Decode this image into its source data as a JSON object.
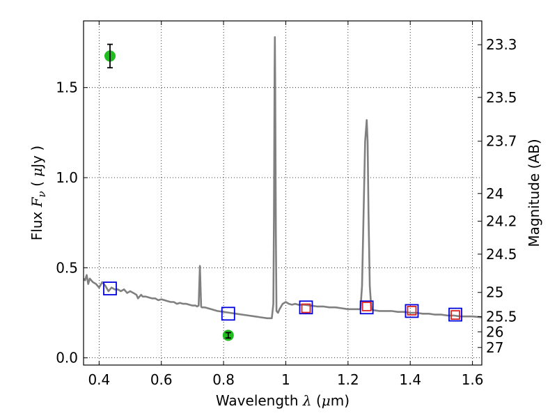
{
  "chart_data": {
    "type": "line",
    "xlabel": {
      "prefix": "Wavelength  ",
      "lambda": "λ",
      "unit_open": " (",
      "mu": "μ",
      "unit_close": "m)"
    },
    "ylabel": {
      "prefix": "Flux  ",
      "F": "F",
      "nu": "ν",
      "open": "  ( ",
      "mu": "μ",
      "close": "Jy )"
    },
    "y2label": "Magnitude (AB)",
    "xlim": [
      0.35,
      1.63
    ],
    "ylim": [
      -0.04,
      1.87
    ],
    "xticks": [
      0.4,
      0.6,
      0.8,
      1.0,
      1.2,
      1.4,
      1.6
    ],
    "xtick_labels": [
      "0.4",
      "0.6",
      "0.8",
      "1",
      "1.2",
      "1.4",
      "1.6"
    ],
    "yticks": [
      0.0,
      0.5,
      1.0,
      1.5
    ],
    "ytick_labels": [
      "0.0",
      "0.5",
      "1.0",
      "1.5"
    ],
    "y2ticks": [
      23.3,
      23.5,
      23.7,
      24,
      24.2,
      24.5,
      25,
      25.5,
      26,
      27
    ],
    "y2tick_labels": [
      "23.3",
      "23.5",
      "23.7",
      "24",
      "24.2",
      "24.5",
      "25",
      "25.5",
      "26",
      "27"
    ],
    "grid": true,
    "series": [
      {
        "style": "line",
        "color": "#808080",
        "x": [
          0.35,
          0.355,
          0.36,
          0.365,
          0.37,
          0.38,
          0.39,
          0.4,
          0.41,
          0.42,
          0.43,
          0.44,
          0.45,
          0.46,
          0.47,
          0.48,
          0.49,
          0.5,
          0.51,
          0.52,
          0.525,
          0.53,
          0.535,
          0.54,
          0.55,
          0.56,
          0.57,
          0.58,
          0.59,
          0.6,
          0.61,
          0.62,
          0.63,
          0.64,
          0.65,
          0.66,
          0.67,
          0.68,
          0.69,
          0.7,
          0.71,
          0.715,
          0.72,
          0.722,
          0.724,
          0.726,
          0.728,
          0.73,
          0.74,
          0.75,
          0.76,
          0.78,
          0.8,
          0.82,
          0.84,
          0.86,
          0.88,
          0.9,
          0.92,
          0.94,
          0.955,
          0.96,
          0.962,
          0.964,
          0.965,
          0.966,
          0.968,
          0.97,
          0.975,
          0.98,
          0.99,
          1.0,
          1.01,
          1.02,
          1.03,
          1.04,
          1.06,
          1.08,
          1.1,
          1.12,
          1.14,
          1.16,
          1.18,
          1.2,
          1.22,
          1.24,
          1.245,
          1.25,
          1.255,
          1.26,
          1.263,
          1.266,
          1.27,
          1.275,
          1.28,
          1.3,
          1.32,
          1.34,
          1.36,
          1.38,
          1.4,
          1.42,
          1.44,
          1.46,
          1.48,
          1.5,
          1.52,
          1.54,
          1.56,
          1.58,
          1.6,
          1.63
        ],
        "y": [
          0.44,
          0.43,
          0.46,
          0.41,
          0.44,
          0.42,
          0.41,
          0.39,
          0.42,
          0.4,
          0.37,
          0.39,
          0.38,
          0.38,
          0.37,
          0.38,
          0.36,
          0.37,
          0.36,
          0.35,
          0.33,
          0.34,
          0.35,
          0.34,
          0.34,
          0.335,
          0.33,
          0.33,
          0.32,
          0.325,
          0.32,
          0.315,
          0.31,
          0.31,
          0.3,
          0.305,
          0.3,
          0.3,
          0.295,
          0.29,
          0.29,
          0.285,
          0.29,
          0.4,
          0.51,
          0.4,
          0.285,
          0.28,
          0.28,
          0.275,
          0.27,
          0.26,
          0.255,
          0.25,
          0.245,
          0.24,
          0.235,
          0.23,
          0.225,
          0.22,
          0.22,
          0.3,
          0.8,
          1.6,
          1.78,
          1.5,
          0.7,
          0.26,
          0.25,
          0.27,
          0.3,
          0.31,
          0.3,
          0.295,
          0.3,
          0.295,
          0.295,
          0.29,
          0.285,
          0.285,
          0.28,
          0.28,
          0.275,
          0.27,
          0.27,
          0.27,
          0.4,
          0.8,
          1.2,
          1.32,
          1.2,
          0.8,
          0.4,
          0.27,
          0.265,
          0.26,
          0.26,
          0.26,
          0.255,
          0.255,
          0.25,
          0.25,
          0.245,
          0.245,
          0.24,
          0.24,
          0.235,
          0.235,
          0.23,
          0.23,
          0.23,
          0.225
        ]
      },
      {
        "style": "open-square",
        "color": "#0000dd",
        "x": [
          0.435,
          0.815,
          1.065,
          1.26,
          1.405,
          1.545
        ],
        "y": [
          0.385,
          0.245,
          0.28,
          0.28,
          0.26,
          0.24
        ]
      },
      {
        "style": "open-square",
        "color": "#dd2222",
        "x": [
          1.065,
          1.26,
          1.405,
          1.545
        ],
        "y": [
          0.275,
          0.285,
          0.262,
          0.238
        ]
      },
      {
        "style": "point-errorbar",
        "color": "#22bb22",
        "x": [
          0.435,
          0.815
        ],
        "y": [
          1.675,
          0.125
        ],
        "yerr": [
          0.065,
          0.015
        ]
      }
    ]
  }
}
